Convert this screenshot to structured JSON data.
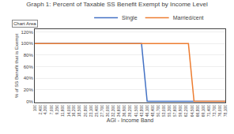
{
  "chart_data": {
    "type": "line",
    "title": "Graph 1: Percent of Taxable SS Benefit Exempt by Income Level",
    "x_label": "AGI - Income Band",
    "y_label": "% of SS Benefit that is Exempt",
    "annotations": [
      "Chart Area"
    ],
    "series": [
      {
        "name": "Single",
        "color": "#4472c4",
        "x": [
          100,
          43800,
          46100,
          50200,
          78100
        ],
        "values": [
          1.0,
          1.0,
          0.0,
          0.0,
          0.0
        ]
      },
      {
        "name": "Married/cent",
        "color": "#ed7d31",
        "x": [
          100,
          46100,
          46100,
          63000,
          65300,
          78100
        ],
        "values": [
          1.0,
          1.0,
          1.0,
          1.0,
          0.0,
          0.0
        ]
      }
    ],
    "xlim": [
      100,
      78100
    ],
    "xticks": [
      100,
      {
        "value": 2400,
        "label": "2,400"
      },
      {
        "value": 4300,
        "label": "4,300"
      },
      {
        "value": 7000,
        "label": "7,000"
      },
      {
        "value": 9350,
        "label": "9,350"
      },
      {
        "value": 11600,
        "label": "11,600"
      },
      {
        "value": 14000,
        "label": "14,000"
      },
      {
        "value": 16200,
        "label": "16,200"
      },
      {
        "value": 18500,
        "label": "18,500"
      },
      {
        "value": 20800,
        "label": "20,800"
      },
      {
        "value": 23100,
        "label": "23,100"
      },
      {
        "value": 25400,
        "label": "25,400"
      },
      {
        "value": 27700,
        "label": "27,700"
      },
      {
        "value": 30000,
        "label": "30,000"
      },
      {
        "value": 32300,
        "label": "32,300"
      },
      {
        "value": 34600,
        "label": "34,600"
      },
      {
        "value": 36900,
        "label": "36,900"
      },
      {
        "value": 39200,
        "label": "39,200"
      },
      {
        "value": 41500,
        "label": "41,500"
      },
      {
        "value": 43800,
        "label": "43,800"
      },
      {
        "value": 46100,
        "label": "46,100"
      },
      {
        "value": 48400,
        "label": "48,400"
      },
      {
        "value": 50700,
        "label": "50,700"
      },
      {
        "value": 53000,
        "label": "53,000"
      },
      {
        "value": 55300,
        "label": "55,300"
      },
      {
        "value": 57600,
        "label": "57,600"
      },
      {
        "value": 59900,
        "label": "59,900"
      },
      {
        "value": 62200,
        "label": "62,200"
      },
      {
        "value": 64500,
        "label": "64,500"
      },
      {
        "value": 66800,
        "label": "66,800"
      },
      {
        "value": 69100,
        "label": "69,100"
      },
      {
        "value": 71400,
        "label": "71,400"
      },
      {
        "value": 73700,
        "label": "73,700"
      },
      {
        "value": 76000,
        "label": "76,000"
      },
      {
        "value": 78100,
        "label": "78,100"
      }
    ],
    "ylim": [
      -0.02,
      1.25
    ],
    "yticks": [
      {
        "value": 0.0,
        "label": "0%"
      },
      {
        "value": 0.2,
        "label": "20%"
      },
      {
        "value": 0.4,
        "label": "40%"
      },
      {
        "value": 0.6,
        "label": "60%"
      },
      {
        "value": 0.8,
        "label": "80%"
      },
      {
        "value": 1.0,
        "label": "100%"
      },
      {
        "value": 1.2,
        "label": "120%"
      }
    ],
    "grid": "y",
    "legend": "top"
  }
}
